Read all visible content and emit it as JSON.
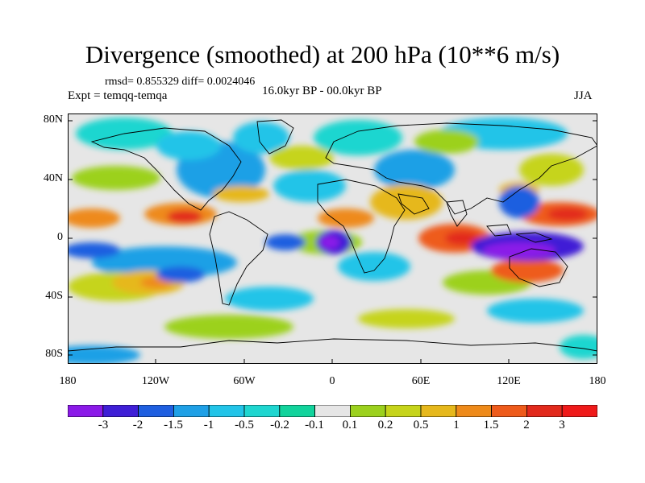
{
  "title": "Divergence (smoothed) at 200 hPa (10**6 m/s)",
  "stats": "rmsd= 0.855329 diff= 0.0024046",
  "experiment": "Expt = temqq-temqa",
  "period": "16.0kyr BP - 00.0kyr BP",
  "season": "JJA",
  "map": {
    "projection": "cylindrical-equidistant",
    "lat_ticks": [
      "80N",
      "40N",
      "0",
      "40S",
      "80S"
    ],
    "lon_ticks": [
      "180",
      "120W",
      "60W",
      "0",
      "60E",
      "120E",
      "180"
    ]
  },
  "colorbar": {
    "labels": [
      "-3",
      "-2",
      "-1.5",
      "-1",
      "-0.5",
      "-0.2",
      "-0.1",
      "0.1",
      "0.2",
      "0.5",
      "1",
      "1.5",
      "2",
      "3"
    ],
    "colors": [
      "#8B1AE8",
      "#3F1FD6",
      "#1F5FE0",
      "#1FA0E6",
      "#22C4E8",
      "#1FD6D0",
      "#12D39C",
      "#E6E6E6",
      "#9CD11E",
      "#C6D41B",
      "#E6B81C",
      "#EE8A1A",
      "#EE5B1B",
      "#E22A1C",
      "#EF1A1A"
    ]
  }
}
